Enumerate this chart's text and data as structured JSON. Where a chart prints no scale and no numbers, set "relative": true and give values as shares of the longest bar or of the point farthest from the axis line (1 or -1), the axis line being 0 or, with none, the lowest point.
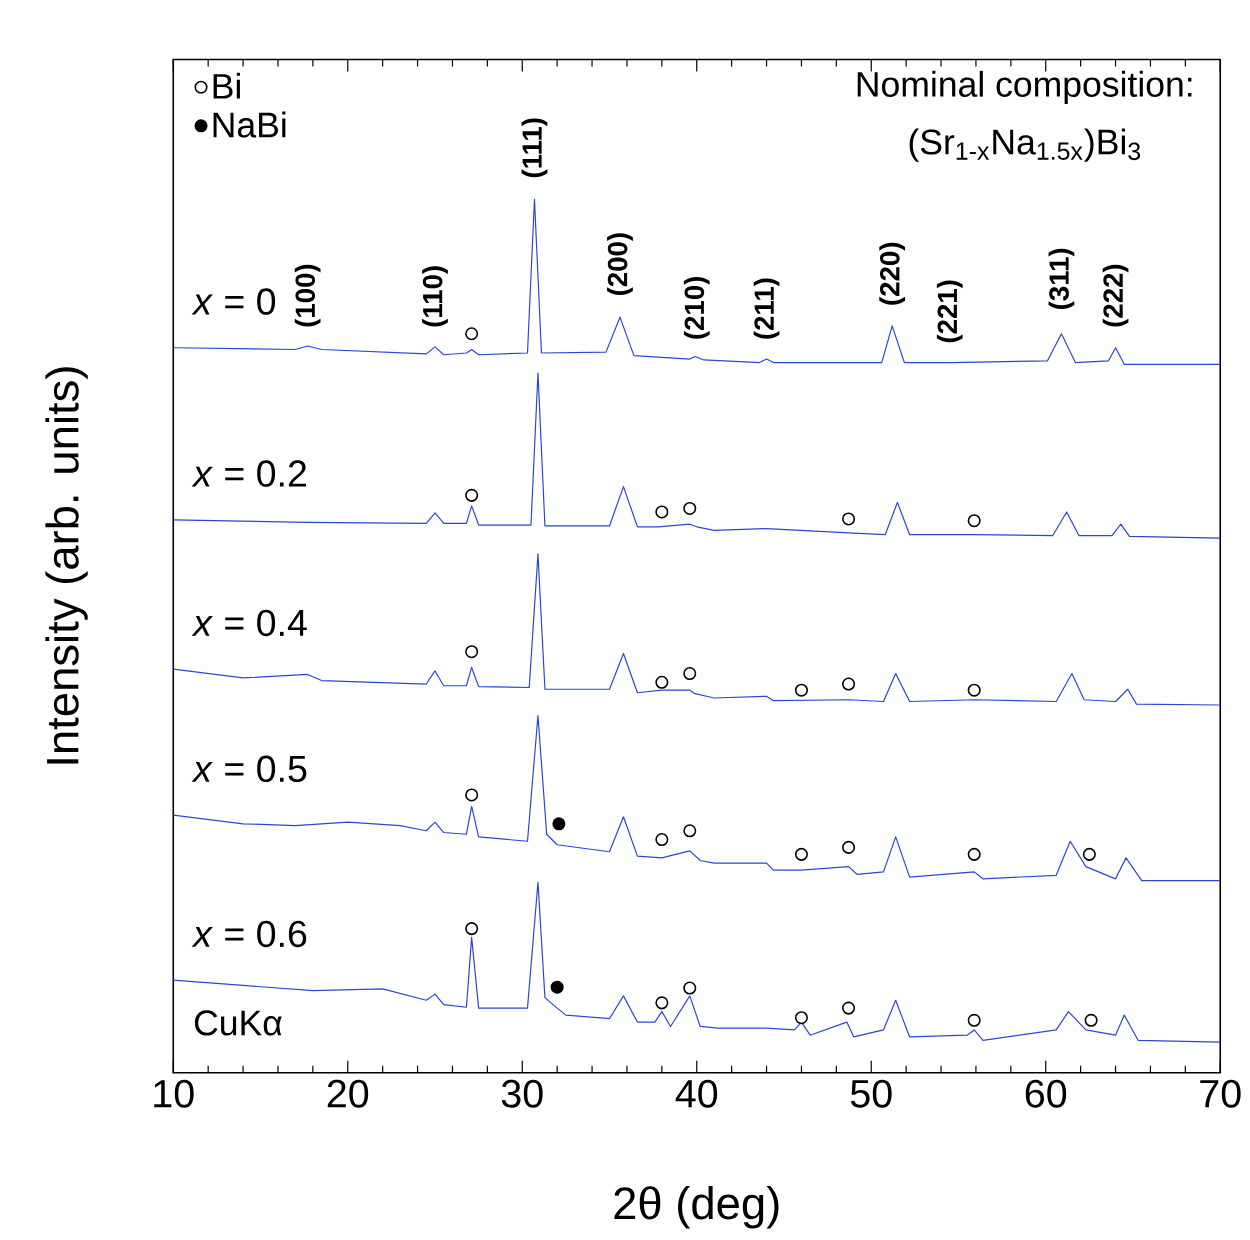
{
  "chart_data": {
    "type": "line",
    "relative": true,
    "xlabel": "2θ (deg)",
    "ylabel": "Intensity (arb. units)",
    "xlim": [
      10,
      70
    ],
    "xticks": [
      10,
      20,
      30,
      40,
      50,
      60,
      70
    ],
    "tick_labels": "x",
    "legend": "top left",
    "annotations": [
      "Nominal composition:",
      "(Sr$_{1-x}$Na$_{1.5x}$)Bi$_{3}$",
      "CuKα",
      "(100)",
      "(110)",
      "(111)",
      "(200)",
      "(210)",
      "(211)",
      "(220)",
      "(221)",
      "(311)",
      "(222)"
    ],
    "series": [
      {
        "name": "*x* = 0",
        "color": "#2b46d6",
        "x": [
          10,
          17,
          17.7,
          18.5,
          24.5,
          25.0,
          25.5,
          26.8,
          27.1,
          27.5,
          30.3,
          30.7,
          31.1,
          34.8,
          35.6,
          36.4,
          39.6,
          39.9,
          40.4,
          43.6,
          44.0,
          44.4,
          50.6,
          51.2,
          51.9,
          54.5,
          60.1,
          60.9,
          61.7,
          63.6,
          64.0,
          64.5,
          70
        ],
        "values": [
          0.83,
          0.828,
          0.832,
          0.828,
          0.823,
          0.831,
          0.822,
          0.824,
          0.828,
          0.822,
          0.824,
          1.0,
          0.824,
          0.825,
          0.865,
          0.821,
          0.817,
          0.82,
          0.816,
          0.813,
          0.817,
          0.813,
          0.813,
          0.855,
          0.813,
          0.813,
          0.815,
          0.846,
          0.813,
          0.815,
          0.83,
          0.811,
          0.811
        ]
      },
      {
        "name": "*x* = 0.2",
        "color": "#2b46d6",
        "x": [
          10,
          17.7,
          24.5,
          25.0,
          25.5,
          26.8,
          27.1,
          27.5,
          30.5,
          30.9,
          31.3,
          35.0,
          35.8,
          36.6,
          37.8,
          39.6,
          40.0,
          41.0,
          44.0,
          48.7,
          50.8,
          51.5,
          52.2,
          55.9,
          60.4,
          61.2,
          61.9,
          63.8,
          64.3,
          64.8,
          70
        ],
        "values": [
          0.633,
          0.63,
          0.629,
          0.641,
          0.629,
          0.629,
          0.649,
          0.627,
          0.627,
          0.801,
          0.626,
          0.626,
          0.671,
          0.625,
          0.625,
          0.628,
          0.625,
          0.621,
          0.623,
          0.618,
          0.616,
          0.653,
          0.616,
          0.616,
          0.615,
          0.642,
          0.615,
          0.615,
          0.628,
          0.614,
          0.612
        ]
      },
      {
        "name": "*x* = 0.4",
        "color": "#2b46d6",
        "x": [
          10,
          14,
          17.7,
          18.5,
          24.5,
          25.0,
          25.5,
          26.8,
          27.1,
          27.5,
          30.4,
          30.9,
          31.3,
          35.0,
          35.8,
          36.6,
          38.0,
          39.6,
          39.9,
          41.0,
          44.0,
          44.4,
          48.7,
          50.7,
          51.4,
          52.2,
          55.9,
          60.6,
          61.5,
          62.2,
          64.0,
          64.7,
          65.2,
          70
        ],
        "values": [
          0.462,
          0.452,
          0.456,
          0.449,
          0.445,
          0.46,
          0.443,
          0.443,
          0.464,
          0.442,
          0.441,
          0.594,
          0.439,
          0.439,
          0.48,
          0.435,
          0.438,
          0.438,
          0.434,
          0.429,
          0.431,
          0.426,
          0.427,
          0.425,
          0.457,
          0.425,
          0.427,
          0.425,
          0.457,
          0.427,
          0.425,
          0.439,
          0.422,
          0.421
        ]
      },
      {
        "name": "*x* = 0.5",
        "color": "#2b46d6",
        "x": [
          10,
          14,
          17,
          20,
          23,
          24.5,
          25.0,
          25.5,
          26.8,
          27.1,
          27.5,
          30.3,
          30.9,
          31.4,
          32.0,
          35.0,
          35.8,
          36.6,
          38.0,
          39.6,
          40.2,
          41.0,
          44.0,
          44.4,
          46.0,
          48.7,
          49.2,
          50.7,
          51.4,
          52.2,
          55.9,
          56.4,
          60.6,
          61.4,
          62.3,
          64.0,
          64.6,
          65.5,
          70
        ],
        "values": [
          0.295,
          0.285,
          0.283,
          0.287,
          0.283,
          0.277,
          0.287,
          0.275,
          0.273,
          0.305,
          0.27,
          0.265,
          0.409,
          0.273,
          0.261,
          0.253,
          0.293,
          0.248,
          0.246,
          0.254,
          0.243,
          0.24,
          0.24,
          0.232,
          0.232,
          0.236,
          0.227,
          0.23,
          0.27,
          0.224,
          0.23,
          0.222,
          0.226,
          0.265,
          0.236,
          0.222,
          0.246,
          0.22,
          0.22
        ]
      },
      {
        "name": "*x* = 0.6",
        "color": "#2b46d6",
        "x": [
          10,
          14,
          18,
          22,
          24.5,
          25.0,
          25.5,
          26.8,
          27.1,
          27.5,
          30.3,
          30.9,
          31.3,
          32.0,
          32.5,
          35.0,
          35.8,
          36.6,
          37.6,
          38.0,
          38.5,
          39.6,
          40.2,
          41.2,
          44.0,
          45.6,
          46.0,
          46.5,
          48.6,
          49.0,
          50.7,
          51.4,
          52.2,
          55.5,
          55.9,
          56.4,
          60.6,
          61.3,
          62.3,
          64.0,
          64.5,
          65.3,
          70
        ],
        "values": [
          0.106,
          0.1,
          0.094,
          0.096,
          0.083,
          0.09,
          0.078,
          0.075,
          0.155,
          0.074,
          0.074,
          0.218,
          0.086,
          0.074,
          0.066,
          0.062,
          0.088,
          0.058,
          0.058,
          0.07,
          0.053,
          0.088,
          0.053,
          0.051,
          0.051,
          0.049,
          0.058,
          0.043,
          0.058,
          0.041,
          0.049,
          0.083,
          0.041,
          0.043,
          0.049,
          0.037,
          0.049,
          0.07,
          0.049,
          0.043,
          0.066,
          0.037,
          0.035
        ]
      },
      {
        "name": "Bi",
        "type": "scatter",
        "marker": "circle",
        "color": "#ffffff",
        "x": [
          27.1,
          27.1,
          38.0,
          39.6,
          48.7,
          55.9,
          27.1,
          38.0,
          39.6,
          46.0,
          48.7,
          55.9,
          27.1,
          38.0,
          39.6,
          46.0,
          48.7,
          55.9,
          62.5,
          27.1,
          38.0,
          39.6,
          46.0,
          48.7,
          55.9,
          62.6
        ],
        "values": [
          0.846,
          0.661,
          0.642,
          0.646,
          0.634,
          0.632,
          0.482,
          0.447,
          0.457,
          0.438,
          0.445,
          0.438,
          0.318,
          0.267,
          0.277,
          0.25,
          0.258,
          0.25,
          0.25,
          0.165,
          0.08,
          0.097,
          0.063,
          0.074,
          0.06,
          0.06
        ]
      },
      {
        "name": "NaBi",
        "type": "scatter",
        "marker": "circle",
        "color": "#000000",
        "x": [
          32.1,
          32.0
        ],
        "values": [
          0.285,
          0.098
        ]
      }
    ]
  }
}
